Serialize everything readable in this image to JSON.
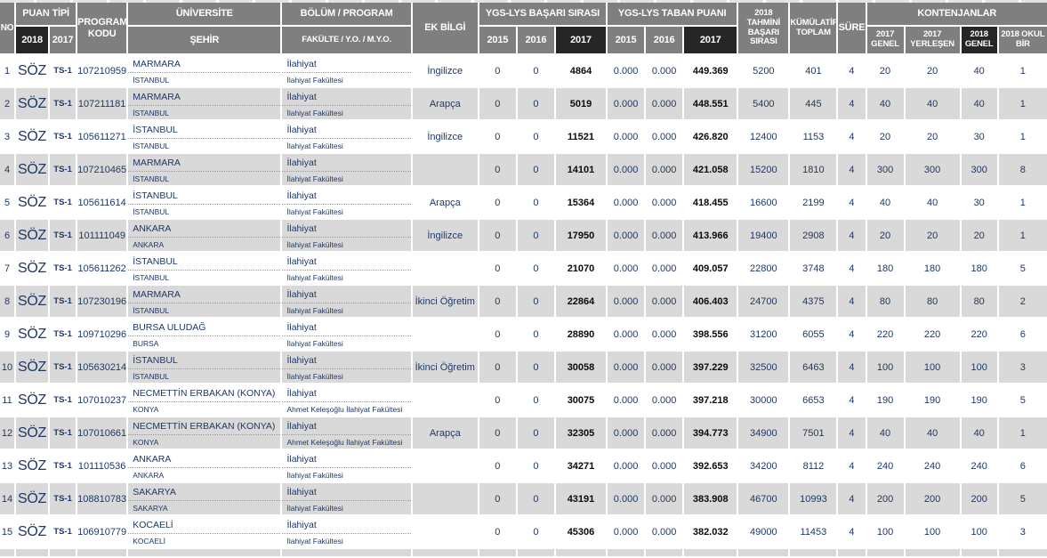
{
  "colors": {
    "header_bg": "#7f7f7f",
    "header_dark_bg": "#262626",
    "row_alt_bg": "#d9d9d9",
    "text_navy": "#1f3864"
  },
  "header": {
    "no": "NO",
    "puan_tipi": "PUAN TİPİ",
    "y2018": "2018",
    "y2017": "2017",
    "y2015": "2015",
    "y2016": "2016",
    "program_kodu": "PROGRAM KODU",
    "universite": "ÜNİVERSİTE",
    "sehir": "ŞEHİR",
    "bolum": "BÖLÜM / PROGRAM",
    "fakulte": "FAKÜLTE / Y.O. / M.Y.O.",
    "ek_bilgi": "EK BİLGİ",
    "basari_sirasi": "YGS-LYS BAŞARI SIRASI",
    "taban_puani": "YGS-LYS TABAN PUANI",
    "tahmini": "2018 TAHMİNİ BAŞARI SIRASI",
    "kumulatif": "KÜMÜLATİF TOPLAM",
    "sure": "SÜRE",
    "kontenjanlar": "KONTENJANLAR",
    "k2017_genel": "2017 GENEL",
    "k2017_yerlesen": "2017 YERLEŞEN",
    "k2018_genel": "2018 GENEL",
    "k2018_okul": "2018 OKUL BİR"
  },
  "rows": [
    {
      "no": "1",
      "pt2018": "SÖZ",
      "pt2017": "TS-1",
      "kod": "107210959",
      "uni": "MARMARA",
      "sehir": "İSTANBUL",
      "bolum": "İlahiyat",
      "fakulte": "İlahiyat Fakültesi",
      "ek": "İngilizce",
      "bs": [
        "0",
        "0",
        "4864"
      ],
      "tp": [
        "0.000",
        "0.000",
        "449.369"
      ],
      "tahmini": "5200",
      "kumulatif": "401",
      "sure": "4",
      "kont": [
        "20",
        "20",
        "40",
        "1"
      ]
    },
    {
      "no": "2",
      "pt2018": "SÖZ",
      "pt2017": "TS-1",
      "kod": "107211181",
      "uni": "MARMARA",
      "sehir": "İSTANBUL",
      "bolum": "İlahiyat",
      "fakulte": "İlahiyat Fakültesi",
      "ek": "Arapça",
      "bs": [
        "0",
        "0",
        "5019"
      ],
      "tp": [
        "0.000",
        "0.000",
        "448.551"
      ],
      "tahmini": "5400",
      "kumulatif": "445",
      "sure": "4",
      "kont": [
        "40",
        "40",
        "40",
        "1"
      ]
    },
    {
      "no": "3",
      "pt2018": "SÖZ",
      "pt2017": "TS-1",
      "kod": "105611271",
      "uni": "İSTANBUL",
      "sehir": "İSTANBUL",
      "bolum": "İlahiyat",
      "fakulte": "İlahiyat Fakültesi",
      "ek": "İngilizce",
      "bs": [
        "0",
        "0",
        "11521"
      ],
      "tp": [
        "0.000",
        "0.000",
        "426.820"
      ],
      "tahmini": "12400",
      "kumulatif": "1153",
      "sure": "4",
      "kont": [
        "20",
        "20",
        "30",
        "1"
      ]
    },
    {
      "no": "4",
      "pt2018": "SÖZ",
      "pt2017": "TS-1",
      "kod": "107210465",
      "uni": "MARMARA",
      "sehir": "İSTANBUL",
      "bolum": "İlahiyat",
      "fakulte": "İlahiyat Fakültesi",
      "ek": "",
      "bs": [
        "0",
        "0",
        "14101"
      ],
      "tp": [
        "0.000",
        "0.000",
        "421.058"
      ],
      "tahmini": "15200",
      "kumulatif": "1810",
      "sure": "4",
      "kont": [
        "300",
        "300",
        "300",
        "8"
      ]
    },
    {
      "no": "5",
      "pt2018": "SÖZ",
      "pt2017": "TS-1",
      "kod": "105611614",
      "uni": "İSTANBUL",
      "sehir": "İSTANBUL",
      "bolum": "İlahiyat",
      "fakulte": "İlahiyat Fakültesi",
      "ek": "Arapça",
      "bs": [
        "0",
        "0",
        "15364"
      ],
      "tp": [
        "0.000",
        "0.000",
        "418.455"
      ],
      "tahmini": "16600",
      "kumulatif": "2199",
      "sure": "4",
      "kont": [
        "40",
        "40",
        "30",
        "1"
      ]
    },
    {
      "no": "6",
      "pt2018": "SÖZ",
      "pt2017": "TS-1",
      "kod": "101111049",
      "uni": "ANKARA",
      "sehir": "ANKARA",
      "bolum": "İlahiyat",
      "fakulte": "İlahiyat Fakültesi",
      "ek": "İngilizce",
      "bs": [
        "0",
        "0",
        "17950"
      ],
      "tp": [
        "0.000",
        "0.000",
        "413.966"
      ],
      "tahmini": "19400",
      "kumulatif": "2908",
      "sure": "4",
      "kont": [
        "20",
        "20",
        "20",
        "1"
      ]
    },
    {
      "no": "7",
      "pt2018": "SÖZ",
      "pt2017": "TS-1",
      "kod": "105611262",
      "uni": "İSTANBUL",
      "sehir": "İSTANBUL",
      "bolum": "İlahiyat",
      "fakulte": "İlahiyat Fakültesi",
      "ek": "",
      "bs": [
        "0",
        "0",
        "21070"
      ],
      "tp": [
        "0.000",
        "0.000",
        "409.057"
      ],
      "tahmini": "22800",
      "kumulatif": "3748",
      "sure": "4",
      "kont": [
        "180",
        "180",
        "180",
        "5"
      ]
    },
    {
      "no": "8",
      "pt2018": "SÖZ",
      "pt2017": "TS-1",
      "kod": "107230196",
      "uni": "MARMARA",
      "sehir": "İSTANBUL",
      "bolum": "İlahiyat",
      "fakulte": "İlahiyat Fakültesi",
      "ek": "İkinci Öğretim",
      "bs": [
        "0",
        "0",
        "22864"
      ],
      "tp": [
        "0.000",
        "0.000",
        "406.403"
      ],
      "tahmini": "24700",
      "kumulatif": "4375",
      "sure": "4",
      "kont": [
        "80",
        "80",
        "80",
        "2"
      ]
    },
    {
      "no": "9",
      "pt2018": "SÖZ",
      "pt2017": "TS-1",
      "kod": "109710296",
      "uni": "BURSA ULUDAĞ",
      "sehir": "BURSA",
      "bolum": "İlahiyat",
      "fakulte": "İlahiyat Fakültesi",
      "ek": "",
      "bs": [
        "0",
        "0",
        "28890"
      ],
      "tp": [
        "0.000",
        "0.000",
        "398.556"
      ],
      "tahmini": "31200",
      "kumulatif": "6055",
      "sure": "4",
      "kont": [
        "220",
        "220",
        "220",
        "6"
      ]
    },
    {
      "no": "10",
      "pt2018": "SÖZ",
      "pt2017": "TS-1",
      "kod": "105630214",
      "uni": "İSTANBUL",
      "sehir": "İSTANBUL",
      "bolum": "İlahiyat",
      "fakulte": "İlahiyat Fakültesi",
      "ek": "İkinci Öğretim",
      "bs": [
        "0",
        "0",
        "30058"
      ],
      "tp": [
        "0.000",
        "0.000",
        "397.229"
      ],
      "tahmini": "32500",
      "kumulatif": "6463",
      "sure": "4",
      "kont": [
        "100",
        "100",
        "100",
        "3"
      ]
    },
    {
      "no": "11",
      "pt2018": "SÖZ",
      "pt2017": "TS-1",
      "kod": "107010237",
      "uni": "NECMETTİN ERBAKAN (KONYA)",
      "sehir": "KONYA",
      "bolum": "İlahiyat",
      "fakulte": "Ahmet Keleşoğlu İlahiyat Fakültesi",
      "ek": "",
      "bs": [
        "0",
        "0",
        "30075"
      ],
      "tp": [
        "0.000",
        "0.000",
        "397.218"
      ],
      "tahmini": "30000",
      "kumulatif": "6653",
      "sure": "4",
      "kont": [
        "190",
        "190",
        "190",
        "5"
      ]
    },
    {
      "no": "12",
      "pt2018": "SÖZ",
      "pt2017": "TS-1",
      "kod": "107010661",
      "uni": "NECMETTİN ERBAKAN (KONYA)",
      "sehir": "KONYA",
      "bolum": "İlahiyat",
      "fakulte": "Ahmet Keleşoğlu İlahiyat Fakültesi",
      "ek": "Arapça",
      "bs": [
        "0",
        "0",
        "32305"
      ],
      "tp": [
        "0.000",
        "0.000",
        "394.773"
      ],
      "tahmini": "34900",
      "kumulatif": "7501",
      "sure": "4",
      "kont": [
        "40",
        "40",
        "40",
        "1"
      ]
    },
    {
      "no": "13",
      "pt2018": "SÖZ",
      "pt2017": "TS-1",
      "kod": "101110536",
      "uni": "ANKARA",
      "sehir": "ANKARA",
      "bolum": "İlahiyat",
      "fakulte": "İlahiyat Fakültesi",
      "ek": "",
      "bs": [
        "0",
        "0",
        "34271"
      ],
      "tp": [
        "0.000",
        "0.000",
        "392.653"
      ],
      "tahmini": "34200",
      "kumulatif": "8112",
      "sure": "4",
      "kont": [
        "240",
        "240",
        "240",
        "6"
      ]
    },
    {
      "no": "14",
      "pt2018": "SÖZ",
      "pt2017": "TS-1",
      "kod": "108810783",
      "uni": "SAKARYA",
      "sehir": "SAKARYA",
      "bolum": "İlahiyat",
      "fakulte": "İlahiyat Fakültesi",
      "ek": "",
      "bs": [
        "0",
        "0",
        "43191"
      ],
      "tp": [
        "0.000",
        "0.000",
        "383.908"
      ],
      "tahmini": "46700",
      "kumulatif": "10993",
      "sure": "4",
      "kont": [
        "200",
        "200",
        "200",
        "5"
      ]
    },
    {
      "no": "15",
      "pt2018": "SÖZ",
      "pt2017": "TS-1",
      "kod": "106910779",
      "uni": "KOCAELİ",
      "sehir": "KOCAELİ",
      "bolum": "İlahiyat",
      "fakulte": "İlahiyat Fakültesi",
      "ek": "",
      "bs": [
        "0",
        "0",
        "45306"
      ],
      "tp": [
        "0.000",
        "0.000",
        "382.032"
      ],
      "tahmini": "49000",
      "kumulatif": "11453",
      "sure": "4",
      "kont": [
        "100",
        "100",
        "100",
        "3"
      ]
    }
  ]
}
